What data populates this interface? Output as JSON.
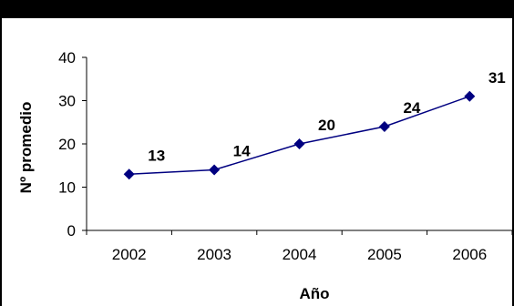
{
  "chart_data": {
    "type": "line",
    "title": "",
    "xlabel": "Año",
    "ylabel": "Nº promedio",
    "categories": [
      "2002",
      "2003",
      "2004",
      "2005",
      "2006"
    ],
    "series": [
      {
        "values": [
          13,
          14,
          20,
          24,
          31
        ],
        "data_labels": [
          "13",
          "14",
          "20",
          "24",
          "31"
        ],
        "color": "#000080",
        "marker": "diamond"
      }
    ],
    "ylim": [
      0,
      40
    ],
    "yticks": [
      "0",
      "10",
      "20",
      "30",
      "40"
    ],
    "grid": false,
    "legend": "none"
  }
}
